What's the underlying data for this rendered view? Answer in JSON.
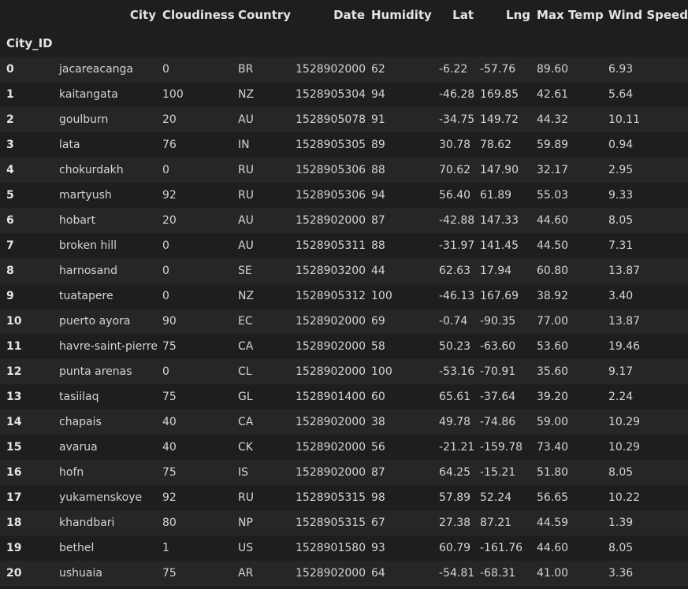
{
  "table": {
    "index_name": "City_ID",
    "columns": [
      "City",
      "Cloudiness",
      "Country",
      "Date",
      "Humidity",
      "Lat",
      "Lng",
      "Max Temp",
      "Wind Speed"
    ],
    "rows": [
      {
        "id": "0",
        "cells": [
          "jacareacanga",
          "0",
          "BR",
          "1528902000",
          "62",
          "-6.22",
          "-57.76",
          "89.60",
          "6.93"
        ]
      },
      {
        "id": "1",
        "cells": [
          "kaitangata",
          "100",
          "NZ",
          "1528905304",
          "94",
          "-46.28",
          "169.85",
          "42.61",
          "5.64"
        ]
      },
      {
        "id": "2",
        "cells": [
          "goulburn",
          "20",
          "AU",
          "1528905078",
          "91",
          "-34.75",
          "149.72",
          "44.32",
          "10.11"
        ]
      },
      {
        "id": "3",
        "cells": [
          "lata",
          "76",
          "IN",
          "1528905305",
          "89",
          "30.78",
          "78.62",
          "59.89",
          "0.94"
        ]
      },
      {
        "id": "4",
        "cells": [
          "chokurdakh",
          "0",
          "RU",
          "1528905306",
          "88",
          "70.62",
          "147.90",
          "32.17",
          "2.95"
        ]
      },
      {
        "id": "5",
        "cells": [
          "martyush",
          "92",
          "RU",
          "1528905306",
          "94",
          "56.40",
          "61.89",
          "55.03",
          "9.33"
        ]
      },
      {
        "id": "6",
        "cells": [
          "hobart",
          "20",
          "AU",
          "1528902000",
          "87",
          "-42.88",
          "147.33",
          "44.60",
          "8.05"
        ]
      },
      {
        "id": "7",
        "cells": [
          "broken hill",
          "0",
          "AU",
          "1528905311",
          "88",
          "-31.97",
          "141.45",
          "44.50",
          "7.31"
        ]
      },
      {
        "id": "8",
        "cells": [
          "harnosand",
          "0",
          "SE",
          "1528903200",
          "44",
          "62.63",
          "17.94",
          "60.80",
          "13.87"
        ]
      },
      {
        "id": "9",
        "cells": [
          "tuatapere",
          "0",
          "NZ",
          "1528905312",
          "100",
          "-46.13",
          "167.69",
          "38.92",
          "3.40"
        ]
      },
      {
        "id": "10",
        "cells": [
          "puerto ayora",
          "90",
          "EC",
          "1528902000",
          "69",
          "-0.74",
          "-90.35",
          "77.00",
          "13.87"
        ]
      },
      {
        "id": "11",
        "cells": [
          "havre-saint-pierre",
          "75",
          "CA",
          "1528902000",
          "58",
          "50.23",
          "-63.60",
          "53.60",
          "19.46"
        ]
      },
      {
        "id": "12",
        "cells": [
          "punta arenas",
          "0",
          "CL",
          "1528902000",
          "100",
          "-53.16",
          "-70.91",
          "35.60",
          "9.17"
        ]
      },
      {
        "id": "13",
        "cells": [
          "tasiilaq",
          "75",
          "GL",
          "1528901400",
          "60",
          "65.61",
          "-37.64",
          "39.20",
          "2.24"
        ]
      },
      {
        "id": "14",
        "cells": [
          "chapais",
          "40",
          "CA",
          "1528902000",
          "38",
          "49.78",
          "-74.86",
          "59.00",
          "10.29"
        ]
      },
      {
        "id": "15",
        "cells": [
          "avarua",
          "40",
          "CK",
          "1528902000",
          "56",
          "-21.21",
          "-159.78",
          "73.40",
          "10.29"
        ]
      },
      {
        "id": "16",
        "cells": [
          "hofn",
          "75",
          "IS",
          "1528902000",
          "87",
          "64.25",
          "-15.21",
          "51.80",
          "8.05"
        ]
      },
      {
        "id": "17",
        "cells": [
          "yukamenskoye",
          "92",
          "RU",
          "1528905315",
          "98",
          "57.89",
          "52.24",
          "56.65",
          "10.22"
        ]
      },
      {
        "id": "18",
        "cells": [
          "khandbari",
          "80",
          "NP",
          "1528905315",
          "67",
          "27.38",
          "87.21",
          "44.59",
          "1.39"
        ]
      },
      {
        "id": "19",
        "cells": [
          "bethel",
          "1",
          "US",
          "1528901580",
          "93",
          "60.79",
          "-161.76",
          "44.60",
          "8.05"
        ]
      },
      {
        "id": "20",
        "cells": [
          "ushuaia",
          "75",
          "AR",
          "1528902000",
          "64",
          "-54.81",
          "-68.31",
          "41.00",
          "3.36"
        ]
      }
    ]
  }
}
